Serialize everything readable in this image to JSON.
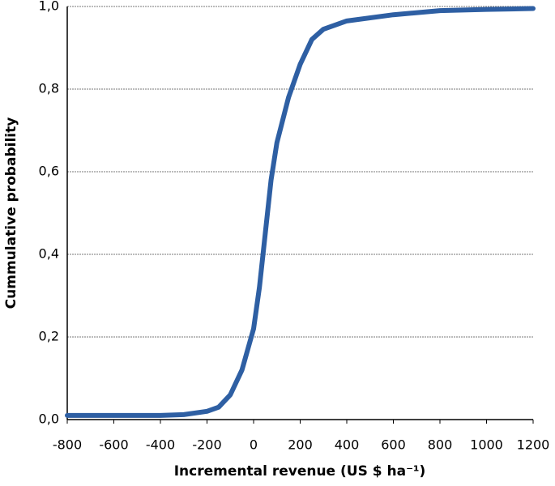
{
  "chart_data": {
    "type": "line",
    "x_label": "Incremental revenue (US $ ha⁻¹)",
    "y_label": "Cummulative probability",
    "x": [
      -800,
      -600,
      -400,
      -300,
      -200,
      -150,
      -100,
      -50,
      0,
      25,
      50,
      75,
      100,
      150,
      200,
      250,
      300,
      400,
      600,
      800,
      1000,
      1200
    ],
    "series": [
      {
        "color": "#2e5fa3",
        "values": [
          0.01,
          0.01,
          0.01,
          0.012,
          0.02,
          0.03,
          0.06,
          0.12,
          0.22,
          0.32,
          0.45,
          0.58,
          0.67,
          0.78,
          0.86,
          0.92,
          0.945,
          0.965,
          0.98,
          0.99,
          0.993,
          0.995
        ]
      }
    ],
    "xlim": [
      -800,
      1200
    ],
    "xticks": [
      -800,
      -600,
      -400,
      -200,
      0,
      200,
      400,
      600,
      800,
      1000,
      1200
    ],
    "ylim": [
      0,
      1
    ],
    "yticks": [
      {
        "value": 0,
        "label": "0,0"
      },
      {
        "value": 0.2,
        "label": "0,2"
      },
      {
        "value": 0.4,
        "label": "0,4"
      },
      {
        "value": 0.6,
        "label": "0,6"
      },
      {
        "value": 0.8,
        "label": "0,8"
      },
      {
        "value": 1,
        "label": "1,0"
      }
    ],
    "grid": true
  }
}
